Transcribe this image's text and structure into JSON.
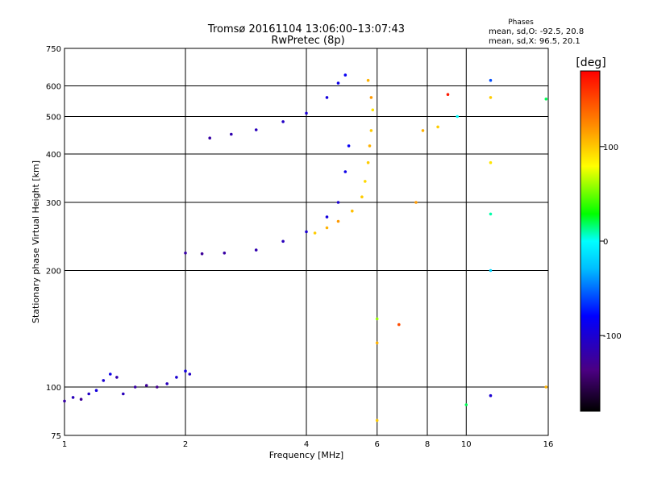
{
  "header": {
    "title_line1": "Tromsø 20161104 13:06:00–13:07:43",
    "title_line2": "RwPretec (8p)",
    "stats_title": "Phases",
    "stats_o": "mean, sd,O:  -92.5, 20.8",
    "stats_x": "mean, sd,X:  96.5, 20.1"
  },
  "colorbar": {
    "label": "[deg]",
    "ticks": [
      {
        "value": 100,
        "label": "100"
      },
      {
        "value": 0,
        "label": "0"
      },
      {
        "value": -100,
        "label": "-100"
      }
    ],
    "range": [
      -180,
      180
    ]
  },
  "chart_data": {
    "type": "scatter",
    "title": "Tromsø 20161104 13:06:00–13:07:43",
    "subtitle": "RwPretec (8p)",
    "xlabel": "Frequency [MHz]",
    "ylabel": "Stationary phase Virtual Height [km]",
    "xscale": "log",
    "yscale": "log",
    "xlim": [
      1,
      16
    ],
    "ylim": [
      75,
      750
    ],
    "grid": true,
    "xticks": [
      1,
      2,
      4,
      6,
      8,
      10,
      16
    ],
    "yticks": [
      75,
      100,
      200,
      300,
      400,
      500,
      600,
      750
    ],
    "color_encoding": "phase [deg]",
    "series": [
      {
        "points": [
          [
            1.0,
            92,
            -120
          ],
          [
            1.05,
            94,
            -110
          ],
          [
            1.1,
            93,
            -125
          ],
          [
            1.15,
            96,
            -105
          ],
          [
            1.2,
            98,
            -95
          ],
          [
            1.25,
            104,
            -100
          ],
          [
            1.3,
            108,
            -90
          ],
          [
            1.35,
            106,
            -115
          ],
          [
            1.4,
            96,
            -110
          ],
          [
            1.5,
            100,
            -120
          ],
          [
            1.6,
            101,
            -125
          ],
          [
            1.7,
            100,
            -130
          ],
          [
            1.8,
            102,
            -110
          ],
          [
            1.9,
            106,
            -100
          ],
          [
            2.0,
            110,
            -95
          ],
          [
            2.05,
            108,
            -105
          ],
          [
            2.0,
            222,
            -120
          ],
          [
            2.2,
            221,
            -125
          ],
          [
            2.5,
            222,
            -120
          ],
          [
            3.0,
            226,
            -115
          ],
          [
            3.5,
            238,
            -110
          ],
          [
            4.0,
            252,
            -100
          ],
          [
            4.5,
            275,
            -95
          ],
          [
            4.8,
            300,
            -100
          ],
          [
            5.0,
            360,
            -90
          ],
          [
            5.1,
            420,
            -85
          ],
          [
            2.3,
            440,
            -120
          ],
          [
            2.6,
            450,
            -115
          ],
          [
            3.0,
            462,
            -110
          ],
          [
            3.5,
            485,
            -105
          ],
          [
            4.0,
            510,
            -100
          ],
          [
            4.5,
            560,
            -95
          ],
          [
            4.8,
            610,
            -90
          ],
          [
            5.0,
            640,
            -85
          ]
        ]
      },
      {
        "points": [
          [
            4.2,
            250,
            100
          ],
          [
            4.5,
            258,
            110
          ],
          [
            4.8,
            268,
            120
          ],
          [
            5.2,
            285,
            105
          ],
          [
            5.5,
            310,
            100
          ],
          [
            5.6,
            340,
            95
          ],
          [
            5.7,
            380,
            100
          ],
          [
            5.75,
            420,
            110
          ],
          [
            5.8,
            460,
            100
          ],
          [
            5.85,
            520,
            90
          ],
          [
            5.8,
            560,
            120
          ],
          [
            5.7,
            620,
            110
          ]
        ]
      },
      {
        "points": [
          [
            6.0,
            150,
            60
          ],
          [
            6.0,
            130,
            110
          ],
          [
            6.0,
            82,
            100
          ],
          [
            6.8,
            145,
            150
          ],
          [
            7.5,
            300,
            120
          ],
          [
            7.8,
            460,
            110
          ],
          [
            8.5,
            470,
            100
          ],
          [
            9.0,
            570,
            170
          ],
          [
            9.5,
            500,
            0
          ],
          [
            10.0,
            90,
            20
          ],
          [
            11.5,
            620,
            -60
          ],
          [
            11.5,
            560,
            100
          ],
          [
            11.5,
            380,
            90
          ],
          [
            11.5,
            280,
            10
          ],
          [
            11.5,
            200,
            -20
          ],
          [
            11.5,
            95,
            -100
          ],
          [
            15.8,
            100,
            110
          ],
          [
            15.8,
            555,
            20
          ]
        ]
      }
    ]
  }
}
